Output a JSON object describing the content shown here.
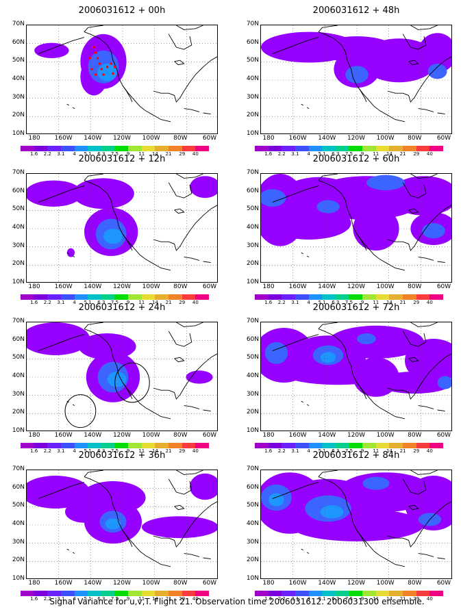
{
  "panels": [
    {
      "title": "2006031612 + 00h",
      "blobs": [
        [
          0.13,
          0.23,
          0.09,
          0.07,
          1
        ],
        [
          0.35,
          0.47,
          0.07,
          0.17,
          1
        ],
        [
          0.4,
          0.33,
          0.12,
          0.25,
          1
        ],
        [
          0.4,
          0.38,
          0.08,
          0.15,
          2
        ],
        [
          0.42,
          0.43,
          0.05,
          0.08,
          3
        ]
      ],
      "observations": true,
      "circles": []
    },
    {
      "title": "2006031612 + 48h",
      "blobs": [
        [
          0.25,
          0.2,
          0.25,
          0.14,
          1
        ],
        [
          0.5,
          0.22,
          0.2,
          0.12,
          1
        ],
        [
          0.5,
          0.4,
          0.12,
          0.17,
          1
        ],
        [
          0.72,
          0.32,
          0.2,
          0.2,
          1
        ],
        [
          0.92,
          0.25,
          0.1,
          0.18,
          1
        ],
        [
          0.5,
          0.45,
          0.06,
          0.08,
          2
        ],
        [
          0.92,
          0.42,
          0.05,
          0.07,
          2
        ]
      ],
      "observations": false,
      "circles": []
    },
    {
      "title": "2006031612 + 12h",
      "blobs": [
        [
          0.14,
          0.18,
          0.15,
          0.12,
          1
        ],
        [
          0.4,
          0.18,
          0.16,
          0.14,
          1
        ],
        [
          0.44,
          0.53,
          0.14,
          0.22,
          1
        ],
        [
          0.44,
          0.55,
          0.08,
          0.14,
          2
        ],
        [
          0.45,
          0.57,
          0.05,
          0.07,
          3
        ],
        [
          0.93,
          0.12,
          0.08,
          0.1,
          1
        ],
        [
          0.23,
          0.72,
          0.02,
          0.04,
          1
        ]
      ],
      "observations": false,
      "circles": []
    },
    {
      "title": "2006031612 + 60h",
      "blobs": [
        [
          0.1,
          0.33,
          0.14,
          0.33,
          1
        ],
        [
          0.3,
          0.25,
          0.22,
          0.22,
          1
        ],
        [
          0.55,
          0.22,
          0.3,
          0.2,
          1
        ],
        [
          0.85,
          0.2,
          0.18,
          0.18,
          1
        ],
        [
          0.6,
          0.5,
          0.12,
          0.2,
          1
        ],
        [
          0.9,
          0.5,
          0.12,
          0.15,
          1
        ],
        [
          0.25,
          0.45,
          0.22,
          0.15,
          1
        ],
        [
          0.06,
          0.22,
          0.07,
          0.08,
          2
        ],
        [
          0.65,
          0.08,
          0.1,
          0.07,
          2
        ],
        [
          0.35,
          0.3,
          0.06,
          0.06,
          2
        ],
        [
          0.9,
          0.52,
          0.06,
          0.07,
          2
        ]
      ],
      "observations": false,
      "circles": []
    },
    {
      "title": "2006031612 + 24h",
      "blobs": [
        [
          0.15,
          0.15,
          0.18,
          0.15,
          1
        ],
        [
          0.42,
          0.22,
          0.15,
          0.12,
          1
        ],
        [
          0.45,
          0.5,
          0.14,
          0.23,
          1
        ],
        [
          0.45,
          0.5,
          0.08,
          0.14,
          2
        ],
        [
          0.47,
          0.52,
          0.05,
          0.07,
          3
        ],
        [
          0.9,
          0.5,
          0.07,
          0.06,
          1
        ]
      ],
      "observations": false,
      "circles": [
        [
          0.55,
          0.55,
          0.09,
          0.18
        ],
        [
          0.28,
          0.81,
          0.08,
          0.15
        ]
      ]
    },
    {
      "title": "2006031612 + 72h",
      "blobs": [
        [
          0.12,
          0.3,
          0.16,
          0.25,
          1
        ],
        [
          0.35,
          0.3,
          0.2,
          0.18,
          1
        ],
        [
          0.6,
          0.18,
          0.25,
          0.15,
          1
        ],
        [
          0.9,
          0.35,
          0.15,
          0.2,
          1
        ],
        [
          0.6,
          0.5,
          0.12,
          0.18,
          1
        ],
        [
          0.4,
          0.45,
          0.3,
          0.12,
          1
        ],
        [
          0.8,
          0.55,
          0.2,
          0.1,
          1
        ],
        [
          0.08,
          0.28,
          0.06,
          0.1,
          2
        ],
        [
          0.35,
          0.3,
          0.08,
          0.09,
          2
        ],
        [
          0.55,
          0.15,
          0.05,
          0.05,
          2
        ],
        [
          0.96,
          0.55,
          0.04,
          0.06,
          2
        ],
        [
          0.35,
          0.32,
          0.04,
          0.05,
          3
        ]
      ],
      "observations": false,
      "circles": []
    },
    {
      "title": "2006031612 + 36h",
      "blobs": [
        [
          0.15,
          0.2,
          0.18,
          0.15,
          1
        ],
        [
          0.45,
          0.25,
          0.17,
          0.15,
          1
        ],
        [
          0.45,
          0.47,
          0.15,
          0.2,
          1
        ],
        [
          0.8,
          0.52,
          0.2,
          0.1,
          1
        ],
        [
          0.3,
          0.38,
          0.1,
          0.1,
          1
        ],
        [
          0.45,
          0.47,
          0.07,
          0.1,
          2
        ],
        [
          0.45,
          0.49,
          0.04,
          0.05,
          3
        ],
        [
          0.93,
          0.15,
          0.08,
          0.12,
          1
        ]
      ],
      "observations": false,
      "circles": []
    },
    {
      "title": "2006031612 + 84h",
      "blobs": [
        [
          0.15,
          0.3,
          0.18,
          0.28,
          1
        ],
        [
          0.35,
          0.3,
          0.25,
          0.22,
          1
        ],
        [
          0.65,
          0.2,
          0.25,
          0.18,
          1
        ],
        [
          0.9,
          0.3,
          0.15,
          0.25,
          1
        ],
        [
          0.5,
          0.5,
          0.35,
          0.15,
          1
        ],
        [
          0.08,
          0.25,
          0.08,
          0.12,
          2
        ],
        [
          0.35,
          0.35,
          0.12,
          0.12,
          2
        ],
        [
          0.6,
          0.12,
          0.07,
          0.06,
          2
        ],
        [
          0.88,
          0.45,
          0.06,
          0.06,
          2
        ],
        [
          0.37,
          0.38,
          0.06,
          0.06,
          3
        ],
        [
          0.08,
          0.27,
          0.04,
          0.06,
          3
        ]
      ],
      "observations": false,
      "circles": []
    }
  ],
  "lat_labels": [
    "70N",
    "60N",
    "50N",
    "40N",
    "30N",
    "20N",
    "10N"
  ],
  "lon_labels": [
    "180",
    "160W",
    "140W",
    "120W",
    "100W",
    "80W",
    "60W"
  ],
  "colorbar_labels": [
    "1.6",
    "2.2",
    "3.1",
    "4",
    "5.1",
    "6.3",
    "7.5",
    "9",
    "11",
    "14",
    "21",
    "29",
    "40"
  ],
  "colorbar_colors": [
    "#a000c8",
    "#7c00dc",
    "#6a20ff",
    "#3c50ff",
    "#1e90ff",
    "#00c0c8",
    "#00d08c",
    "#00dc00",
    "#a0e632",
    "#e6dc32",
    "#e6af2d",
    "#f08228",
    "#fa3c3c",
    "#f00082"
  ],
  "fill_colors": [
    "#ffffff",
    "#9600ff",
    "#3c64ff",
    "#1e96ff"
  ],
  "caption": "Signal Variance for u,v,T. Flight 21. Observation time 2006031612. 2006031300 ensemble."
}
